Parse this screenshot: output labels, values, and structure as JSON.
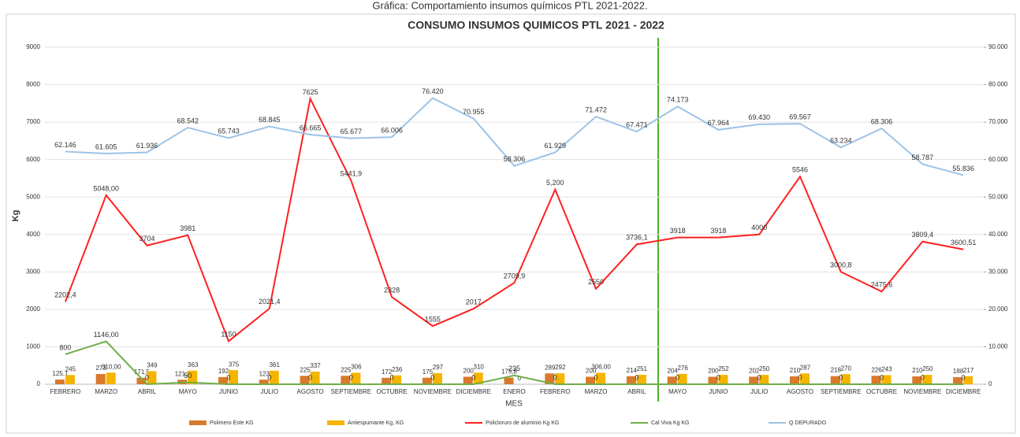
{
  "caption": "Gráfica: Comportamiento insumos químicos PTL 2021-2022.",
  "chart_data": {
    "type": "combo",
    "title": "CONSUMO INSUMOS QUIMICOS PTL 2021 - 2022",
    "x_label": "MES",
    "y_label": "Kg",
    "categories": [
      "FEBRERO",
      "MARZO",
      "ABRIL",
      "MAYO",
      "JUNIO",
      "JULIO",
      "AGOSTO",
      "SEPTIEMBRE",
      "OCTUBRE",
      "NOVIEMBRE",
      "DICIEMBRE",
      "ENERO",
      "FEBRERO",
      "MARZO",
      "ABRIL",
      "MAYO",
      "JUNIO",
      "JULIO",
      "AGOSTO",
      "SEPTIEMBRE",
      "OCTUBRE",
      "NOVIEMBRE",
      "DICIEMBRE"
    ],
    "ylim": [
      0,
      9000
    ],
    "yticks": [
      0,
      1000,
      2000,
      3000,
      4000,
      5000,
      6000,
      7000,
      8000,
      9000
    ],
    "y2lim": [
      0,
      90000
    ],
    "y2ticks": [
      0,
      {
        "value": 10000,
        "label": "10.000"
      },
      {
        "value": 20000,
        "label": "20.000"
      },
      {
        "value": 30000,
        "label": "30.000"
      },
      {
        "value": 40000,
        "label": "40.000"
      },
      {
        "value": 50000,
        "label": "50.000"
      },
      {
        "value": 60000,
        "label": "60.000"
      },
      {
        "value": 70000,
        "label": "70.000"
      },
      {
        "value": 80000,
        "label": "80.000"
      },
      {
        "value": 90000,
        "label": "90.000"
      }
    ],
    "grid": true,
    "legend": "bottom",
    "series": [
      {
        "name": "Polimero Este KG",
        "type": "bar",
        "color": "#d9792b",
        "values": [
          125.1,
          273,
          171.5,
          121.8,
          192,
          123,
          225,
          225,
          172,
          175,
          200,
          175.8,
          289,
          200,
          214,
          204,
          200,
          202,
          210,
          218,
          226,
          210,
          188
        ],
        "value_labels": [
          "125,1",
          "273",
          "171,5",
          "121,8",
          "192",
          "123",
          "225",
          "225",
          "172",
          "175",
          "200",
          "175,8",
          "289",
          "200",
          "214",
          "204",
          "200",
          "202",
          "210",
          "218",
          "226",
          "210",
          "188"
        ]
      },
      {
        "name": "Antiespumante Kg, KG",
        "type": "bar",
        "color": "#f5b400",
        "values": [
          245,
          310,
          349,
          363,
          375,
          361,
          337,
          306,
          236,
          297,
          310,
          0,
          292,
          306,
          251,
          276,
          252,
          250,
          287,
          270,
          243,
          250,
          217
        ],
        "value_labels": [
          "245",
          "310,00",
          "349",
          "363",
          "375",
          "361",
          "337",
          "306",
          "236",
          "297",
          "310",
          "0",
          "292",
          "306,00",
          "251",
          "276",
          "252",
          "250",
          "287",
          "270",
          "243",
          "250",
          "217"
        ]
      },
      {
        "name": "Policloruro de aluminio Kg KG",
        "type": "line",
        "color": "#ff2020",
        "values": [
          2202.4,
          5048,
          3704,
          3981,
          1150,
          2021.4,
          7625,
          5441.9,
          2328,
          1555,
          2017,
          2709.9,
          5200,
          2550,
          3736.1,
          3918,
          3918,
          4000,
          5546,
          3000.8,
          2475.6,
          3809.4,
          3600.51
        ],
        "value_labels": [
          "2202,4",
          "5048,00",
          "3704",
          "3981",
          "1150",
          "2021,4",
          "7625",
          "5441,9",
          "2328",
          "1555",
          "2017",
          "2709,9",
          "5,200",
          "2550",
          "3736,1",
          "3918",
          "3918",
          "4000",
          "5546",
          "3000,8",
          "2475,6",
          "3809,4",
          "3600,51"
        ]
      },
      {
        "name": "Cal Viva Kg KG",
        "type": "line",
        "color": "#70ad47",
        "values": [
          800,
          1146,
          0,
          50,
          0,
          0,
          0,
          0,
          0,
          0,
          0,
          235,
          0,
          0,
          0,
          0,
          0,
          0,
          0,
          0,
          0,
          0,
          0
        ],
        "value_labels": [
          "800",
          "1146,00",
          "0",
          "50",
          "0",
          "0",
          "0",
          "0",
          "0",
          "0",
          "0",
          "235",
          "0",
          "0",
          "0",
          "0",
          "0",
          "0",
          "0",
          "0",
          "0",
          "0",
          "0"
        ]
      },
      {
        "name": "Q DEPURADO",
        "type": "line",
        "axis": "y2",
        "color": "#9dc3e6",
        "values": [
          62146,
          61605,
          61936,
          68542,
          65743,
          68845,
          66665,
          65677,
          66006,
          76420,
          70955,
          58306,
          61929,
          71472,
          67471,
          74173,
          67964,
          69430,
          69567,
          63234,
          68306,
          58787,
          55836
        ],
        "value_labels": [
          "62.146",
          "61.605",
          "61.936",
          "68.542",
          "65.743",
          "68.845",
          "66.665",
          "65.677",
          "66.006",
          "76.420",
          "70.955",
          "58.306",
          "61.929",
          "71.472",
          "67.471",
          "74.173",
          "67.964",
          "69.430",
          "69.567",
          "63.234",
          "68.306",
          "58.787",
          "55.836"
        ]
      }
    ]
  }
}
